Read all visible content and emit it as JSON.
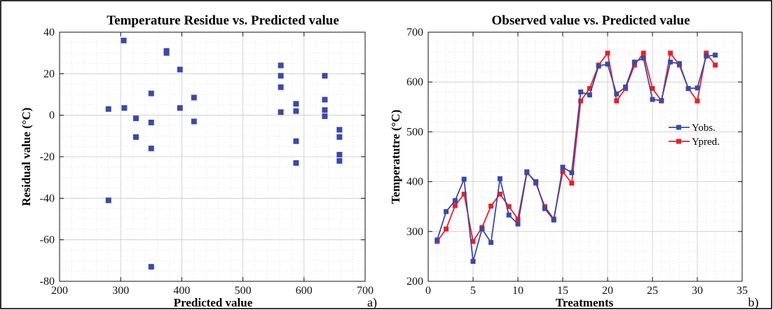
{
  "chart_data": [
    {
      "type": "scatter",
      "title": "Temperature Residue vs. Predicted value",
      "xlabel": "Predicted value",
      "ylabel": "Residual value (°C)",
      "panel_label": "a)",
      "xlim": [
        200,
        700
      ],
      "ylim": [
        -80,
        40
      ],
      "xticks": [
        200,
        300,
        400,
        500,
        600,
        700
      ],
      "xtick_labels": [
        "200",
        "300",
        "400",
        "500",
        "600",
        "700"
      ],
      "yticks": [
        -80,
        -60,
        -40,
        -20,
        0,
        20,
        40
      ],
      "ytick_labels": [
        "-80",
        "-60",
        "-40",
        "-20",
        "0",
        "20",
        "40"
      ],
      "grid": true,
      "color": "#3a4aa8",
      "points": [
        [
          280,
          3
        ],
        [
          280,
          -41
        ],
        [
          305,
          36
        ],
        [
          306,
          3.5
        ],
        [
          325,
          -1.5
        ],
        [
          325,
          -10.5
        ],
        [
          350,
          10.5
        ],
        [
          350,
          -3.5
        ],
        [
          350,
          -16
        ],
        [
          350,
          -73
        ],
        [
          375,
          31
        ],
        [
          375,
          30
        ],
        [
          397,
          22
        ],
        [
          397,
          3.5
        ],
        [
          420,
          8.5
        ],
        [
          420,
          -3
        ],
        [
          562,
          24
        ],
        [
          562,
          19
        ],
        [
          562,
          13.5
        ],
        [
          562,
          1.5
        ],
        [
          587,
          5.5
        ],
        [
          587,
          2
        ],
        [
          587,
          -12.5
        ],
        [
          587,
          -23
        ],
        [
          634,
          19
        ],
        [
          634,
          7.5
        ],
        [
          634,
          2.5
        ],
        [
          634,
          -0.5
        ],
        [
          658,
          -7
        ],
        [
          658,
          -10.5
        ],
        [
          658,
          -19
        ],
        [
          658,
          -22
        ]
      ]
    },
    {
      "type": "line",
      "title": "Observed value vs. Predicted value",
      "xlabel": "Treatments",
      "ylabel": "Temperatutre (°C)",
      "panel_label": "b)",
      "xlim": [
        0,
        35
      ],
      "ylim": [
        200,
        700
      ],
      "xticks": [
        0,
        5,
        10,
        15,
        20,
        25,
        30,
        35
      ],
      "xtick_labels": [
        "0",
        "5",
        "10",
        "15",
        "20",
        "25",
        "30",
        "35"
      ],
      "yticks": [
        200,
        300,
        400,
        500,
        600,
        700
      ],
      "ytick_labels": [
        "200",
        "300",
        "400",
        "500",
        "600",
        "700"
      ],
      "grid": true,
      "legend_position": "right",
      "x": [
        1,
        2,
        3,
        4,
        5,
        6,
        7,
        8,
        9,
        10,
        11,
        12,
        13,
        14,
        15,
        16,
        17,
        18,
        19,
        20,
        21,
        22,
        23,
        24,
        25,
        26,
        27,
        28,
        29,
        30,
        31,
        32
      ],
      "series": [
        {
          "name": "Yobs.",
          "color": "#3a4aa8",
          "values": [
            283,
            340,
            362,
            405,
            240,
            305,
            278,
            406,
            333,
            315,
            418,
            400,
            346,
            323,
            429,
            418,
            580,
            574,
            632,
            636,
            576,
            590,
            640,
            648,
            565,
            563,
            640,
            637,
            587,
            588,
            652,
            654
          ]
        },
        {
          "name": "Ypred.",
          "color": "#e8202a",
          "values": [
            280,
            305,
            352,
            375,
            280,
            308,
            351,
            375,
            350,
            325,
            420,
            397,
            350,
            325,
            420,
            397,
            562,
            587,
            634,
            658,
            562,
            587,
            634,
            658,
            587,
            562,
            658,
            634,
            587,
            562,
            658,
            634
          ]
        }
      ]
    }
  ]
}
